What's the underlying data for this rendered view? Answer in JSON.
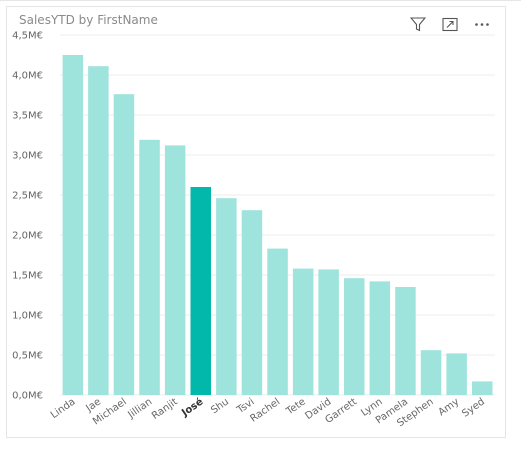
{
  "visual": {
    "title": "SalesYTD by FirstName",
    "toolbar": [
      {
        "name": "filter-icon"
      },
      {
        "name": "focus-mode-icon"
      },
      {
        "name": "more-options-icon"
      }
    ]
  },
  "chart_data": {
    "type": "bar",
    "title": "SalesYTD by FirstName",
    "xlabel": "",
    "ylabel": "",
    "categories": [
      "Linda",
      "Jae",
      "Michael",
      "Jillian",
      "Ranjit",
      "José",
      "Shu",
      "Tsvi",
      "Rachel",
      "Tete",
      "David",
      "Garrett",
      "Lynn",
      "Pamela",
      "Stephen",
      "Amy",
      "Syed"
    ],
    "values": [
      4.25,
      4.11,
      3.76,
      3.19,
      3.12,
      2.6,
      2.46,
      2.31,
      1.83,
      1.58,
      1.57,
      1.46,
      1.42,
      1.35,
      0.56,
      0.52,
      0.17
    ],
    "ylim": [
      0,
      4.5
    ],
    "yticks": [
      0,
      0.5,
      1.0,
      1.5,
      2.0,
      2.5,
      3.0,
      3.5,
      4.0,
      4.5
    ],
    "ytick_labels": [
      "0,0M€",
      "0,5M€",
      "1,0M€",
      "1,5M€",
      "2,0M€",
      "2,5M€",
      "3,0M€",
      "3,5M€",
      "4,0M€",
      "4,5M€"
    ],
    "highlighted": "José",
    "grid": true,
    "colors": {
      "bar": "#9ee3dc",
      "highlight": "#01b8aa",
      "grid": "#ececec"
    }
  }
}
